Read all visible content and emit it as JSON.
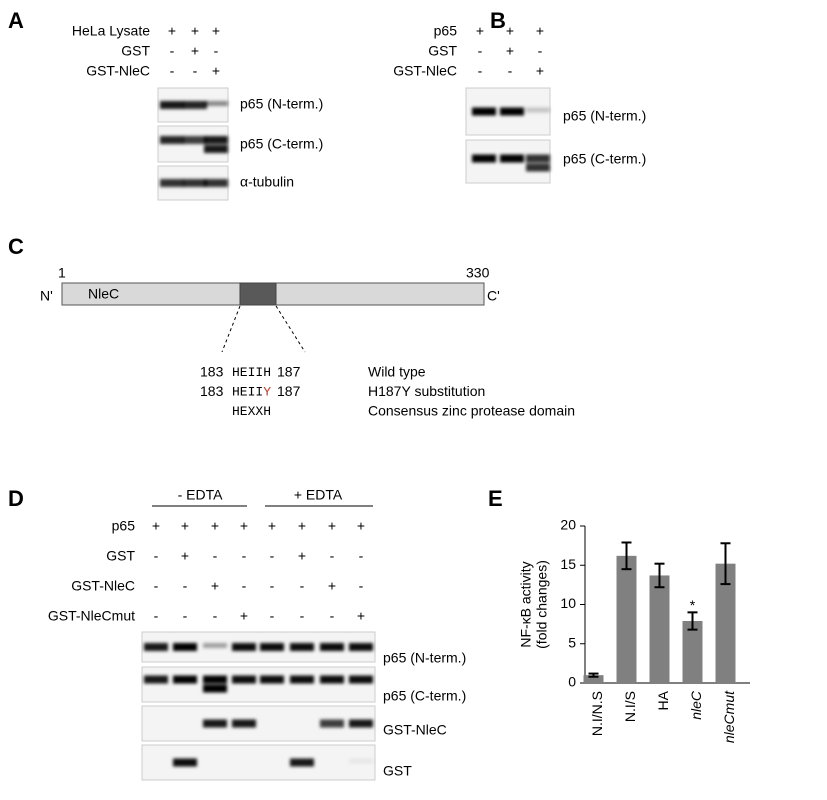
{
  "panel_a": {
    "letter": "A",
    "rows": [
      {
        "label": "HeLa Lysate",
        "signs": [
          "+",
          "+",
          "+"
        ]
      },
      {
        "label": "GST",
        "signs": [
          "-",
          "+",
          "-"
        ]
      },
      {
        "label": "GST-NleC",
        "signs": [
          "-",
          "-",
          "+"
        ]
      }
    ],
    "blots": [
      "p65 (N-term.)",
      "p65 (C-term.)",
      "α-tubulin"
    ]
  },
  "panel_b": {
    "letter": "B",
    "rows": [
      {
        "label": "p65",
        "signs": [
          "+",
          "+",
          "+"
        ]
      },
      {
        "label": "GST",
        "signs": [
          "-",
          "+",
          "-"
        ]
      },
      {
        "label": "GST-NleC",
        "signs": [
          "-",
          "-",
          "+"
        ]
      }
    ],
    "blots": [
      "p65 (N-term.)",
      "p65 (C-term.)"
    ]
  },
  "panel_c": {
    "letter": "C",
    "n_end": "N'",
    "c_end": "C'",
    "start": 1,
    "end": 330,
    "name": "NleC",
    "sequences": [
      {
        "start": 183,
        "seq": "HEIIH",
        "end": 187,
        "desc": "Wild type"
      },
      {
        "start": 183,
        "seq": "HEII",
        "mutation": "Y",
        "end": 187,
        "desc": "H187Y substitution"
      },
      {
        "seq": "HEXXH",
        "desc": "Consensus zinc protease domain"
      }
    ]
  },
  "panel_d": {
    "letter": "D",
    "groups": [
      "- EDTA",
      "+ EDTA"
    ],
    "rows": [
      {
        "label": "p65",
        "signs": [
          "+",
          "+",
          "+",
          "+",
          "+",
          "+",
          "+",
          "+"
        ]
      },
      {
        "label": "GST",
        "signs": [
          "-",
          "+",
          "-",
          "-",
          "-",
          "+",
          "-",
          "-"
        ]
      },
      {
        "label": "GST-NleC",
        "signs": [
          "-",
          "-",
          "+",
          "-",
          "-",
          "-",
          "+",
          "-"
        ]
      },
      {
        "label": "GST-NleCmut",
        "signs": [
          "-",
          "-",
          "-",
          "+",
          "-",
          "-",
          "-",
          "+"
        ]
      }
    ],
    "blots": [
      "p65 (N-term.)",
      "p65 (C-term.)",
      "GST-NleC",
      "GST"
    ]
  },
  "chart_data": {
    "type": "bar",
    "letter": "E",
    "ylabel": [
      "NF-κB activity",
      "(fold changes)"
    ],
    "categories": [
      "N.I/N.S",
      "N.I/S",
      "HA",
      "nleC",
      "nleCmut"
    ],
    "italic_categories": [
      "nleC",
      "nleCmut"
    ],
    "values": [
      1,
      16.2,
      13.7,
      7.9,
      15.2
    ],
    "errors": [
      0.2,
      1.7,
      1.5,
      1.1,
      2.6
    ],
    "color": "#808080",
    "ylim": [
      0,
      20
    ],
    "yticks": [
      0,
      5,
      10,
      15,
      20
    ],
    "annotations": [
      {
        "label": "*",
        "category": "nleC"
      }
    ]
  }
}
